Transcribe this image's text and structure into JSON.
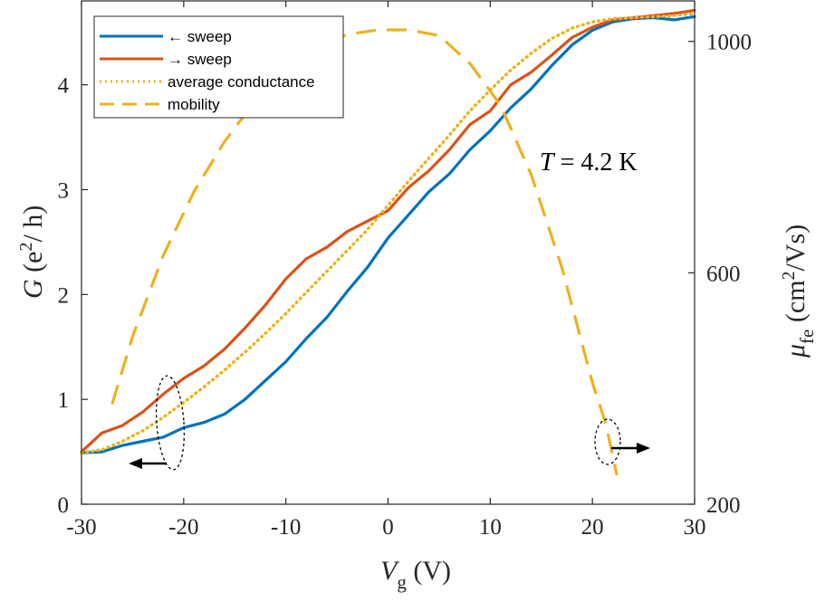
{
  "chart_data": {
    "type": "line",
    "title": "",
    "xlabel": {
      "main": "V",
      "sub": "g",
      "unit": " (V)"
    },
    "ylabel_left": {
      "main": "G",
      "unit_pre": " (e",
      "sup": "2",
      "unit_post": "/ h)"
    },
    "ylabel_right": {
      "main": "μ",
      "sub": "fe",
      "unit_pre": " (cm",
      "sup": "2",
      "unit_post": "/Vs)"
    },
    "xlim": [
      -30,
      30
    ],
    "ylim_left": [
      0,
      4.8
    ],
    "ylim_right": [
      200,
      1070
    ],
    "x_ticks": [
      -30,
      -20,
      -10,
      0,
      10,
      20,
      30
    ],
    "x_tick_labels": [
      "-30",
      "-20",
      "-10",
      "0",
      "10",
      "20",
      "30"
    ],
    "y_left_ticks": [
      0,
      1,
      2,
      3,
      4
    ],
    "y_left_tick_labels": [
      "0",
      "1",
      "2",
      "3",
      "4"
    ],
    "y_right_ticks": [
      200,
      600,
      1000
    ],
    "y_right_tick_labels": [
      "200",
      "600",
      "1000"
    ],
    "grid": false,
    "legend_position": "top-left",
    "annotation": {
      "var": "T",
      "text": " = 4.2 K"
    },
    "colors": {
      "back_sweep": "#0072BD",
      "fwd_sweep": "#D95319",
      "average": "#EDB120",
      "mobility": "#EDB120"
    },
    "series": [
      {
        "name": "← sweep",
        "axis": "left",
        "style": "solid",
        "x": [
          -30,
          -28,
          -26,
          -24,
          -22,
          -20,
          -18,
          -16,
          -14,
          -12,
          -10,
          -8,
          -6,
          -4,
          -2,
          0,
          2,
          4,
          6,
          8,
          10,
          12,
          14,
          16,
          18,
          20,
          22,
          24,
          26,
          28,
          30
        ],
        "y": [
          0.49,
          0.5,
          0.56,
          0.6,
          0.64,
          0.73,
          0.78,
          0.86,
          1.0,
          1.18,
          1.36,
          1.58,
          1.78,
          2.03,
          2.26,
          2.54,
          2.76,
          2.98,
          3.15,
          3.38,
          3.56,
          3.78,
          3.96,
          4.18,
          4.38,
          4.52,
          4.6,
          4.63,
          4.64,
          4.62,
          4.65
        ]
      },
      {
        "name": "→ sweep",
        "axis": "left",
        "style": "solid",
        "x": [
          -30,
          -28,
          -26,
          -24,
          -22,
          -20,
          -18,
          -16,
          -14,
          -12,
          -10,
          -8,
          -6,
          -4,
          -2,
          0,
          2,
          4,
          6,
          8,
          10,
          12,
          14,
          16,
          18,
          20,
          22,
          24,
          26,
          28,
          30
        ],
        "y": [
          0.5,
          0.68,
          0.75,
          0.88,
          1.05,
          1.2,
          1.32,
          1.48,
          1.68,
          1.9,
          2.15,
          2.34,
          2.45,
          2.6,
          2.7,
          2.8,
          3.02,
          3.18,
          3.38,
          3.62,
          3.75,
          4.0,
          4.12,
          4.28,
          4.45,
          4.55,
          4.62,
          4.64,
          4.66,
          4.68,
          4.71
        ]
      },
      {
        "name": "average conductance",
        "axis": "left",
        "style": "dotted",
        "x": [
          -30,
          -28,
          -26,
          -24,
          -22,
          -20,
          -18,
          -16,
          -14,
          -12,
          -10,
          -8,
          -6,
          -4,
          -2,
          0,
          2,
          4,
          6,
          8,
          10,
          12,
          14,
          16,
          18,
          20,
          22,
          24,
          26,
          28,
          30
        ],
        "y": [
          0.49,
          0.52,
          0.6,
          0.7,
          0.83,
          0.97,
          1.12,
          1.28,
          1.45,
          1.63,
          1.82,
          2.02,
          2.22,
          2.42,
          2.62,
          2.85,
          3.08,
          3.3,
          3.52,
          3.75,
          3.95,
          4.14,
          4.3,
          4.44,
          4.54,
          4.6,
          4.63,
          4.64,
          4.65,
          4.66,
          4.68
        ]
      },
      {
        "name": "mobility",
        "axis": "right",
        "style": "dashed",
        "x": [
          -27,
          -25,
          -22,
          -19,
          -16,
          -13,
          -10,
          -7,
          -4,
          -1,
          2,
          5,
          8,
          11,
          14,
          17,
          20,
          21.3,
          22.4
        ],
        "y": [
          373,
          490,
          630,
          740,
          827,
          897,
          950,
          990,
          1012,
          1020,
          1020,
          1010,
          962,
          890,
          770,
          610,
          410,
          340,
          250
        ]
      }
    ]
  }
}
